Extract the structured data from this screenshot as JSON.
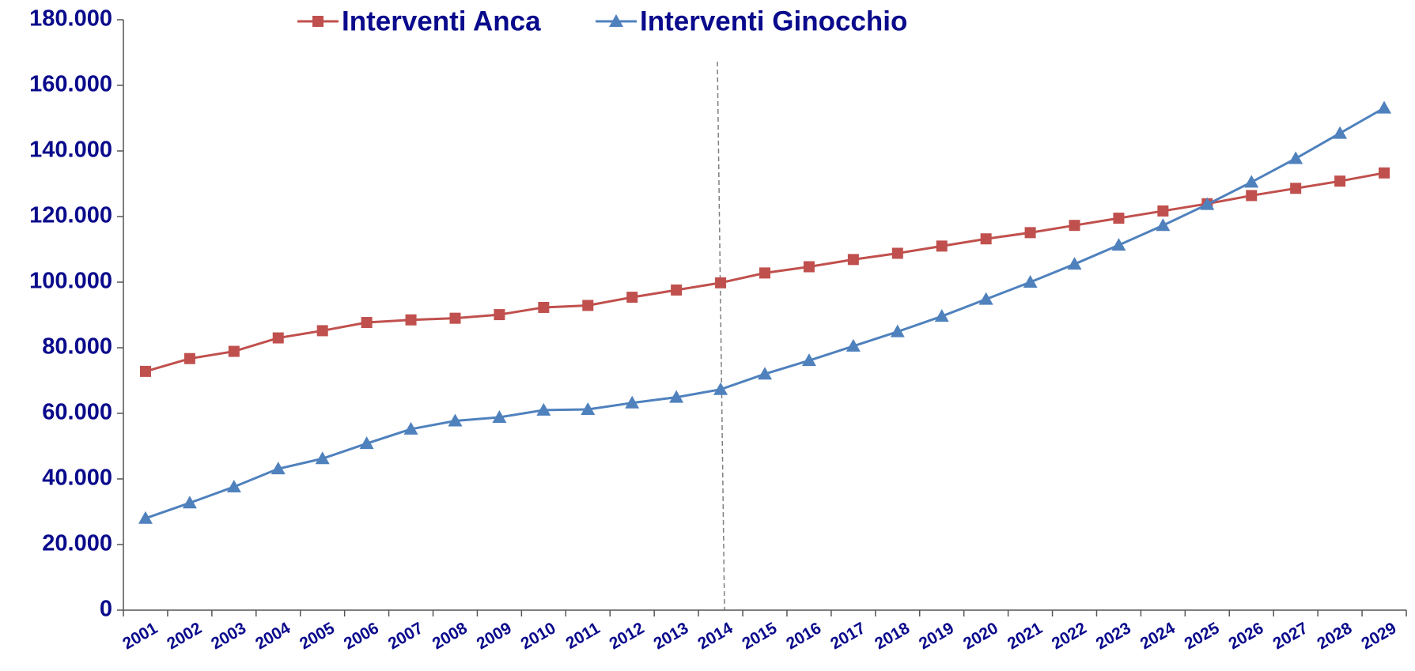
{
  "chart_data": {
    "type": "line",
    "categories": [
      "2001",
      "2002",
      "2003",
      "2004",
      "2005",
      "2006",
      "2007",
      "2008",
      "2009",
      "2010",
      "2011",
      "2012",
      "2013",
      "2014",
      "2015",
      "2016",
      "2017",
      "2018",
      "2019",
      "2020",
      "2021",
      "2022",
      "2023",
      "2024",
      "2025",
      "2026",
      "2027",
      "2028",
      "2029"
    ],
    "series": [
      {
        "name": "Interventi Anca",
        "color": "#c0504d",
        "marker": "square",
        "values": [
          72800,
          76700,
          78900,
          83000,
          85200,
          87700,
          88500,
          89000,
          90100,
          92300,
          92900,
          95400,
          97600,
          99800,
          102800,
          104700,
          106900,
          108800,
          111000,
          113200,
          115100,
          117300,
          119500,
          121700,
          123900,
          126400,
          128600,
          130800,
          133300
        ]
      },
      {
        "name": "Interventi Ginocchio",
        "color": "#4f81bd",
        "marker": "triangle",
        "values": [
          28000,
          32700,
          37600,
          43100,
          46200,
          50800,
          55200,
          57700,
          58800,
          61000,
          61200,
          63200,
          64900,
          67300,
          72000,
          76100,
          80500,
          84900,
          89600,
          94800,
          100000,
          105500,
          111300,
          117300,
          123700,
          130500,
          137700,
          145400,
          153100
        ]
      }
    ],
    "ylim": [
      0,
      180000
    ],
    "yticks": [
      0,
      {
        "value": 20000,
        "label": "20.000"
      },
      {
        "value": 40000,
        "label": "40.000"
      },
      {
        "value": 60000,
        "label": "60.000"
      },
      {
        "value": 80000,
        "label": "80.000"
      },
      {
        "value": 100000,
        "label": "100.000"
      },
      {
        "value": 120000,
        "label": "120.000"
      },
      {
        "value": 140000,
        "label": "140.000"
      },
      {
        "value": 160000,
        "label": "160.000"
      },
      {
        "value": 180000,
        "label": "180.000"
      }
    ],
    "grid": false,
    "legend": "top"
  }
}
